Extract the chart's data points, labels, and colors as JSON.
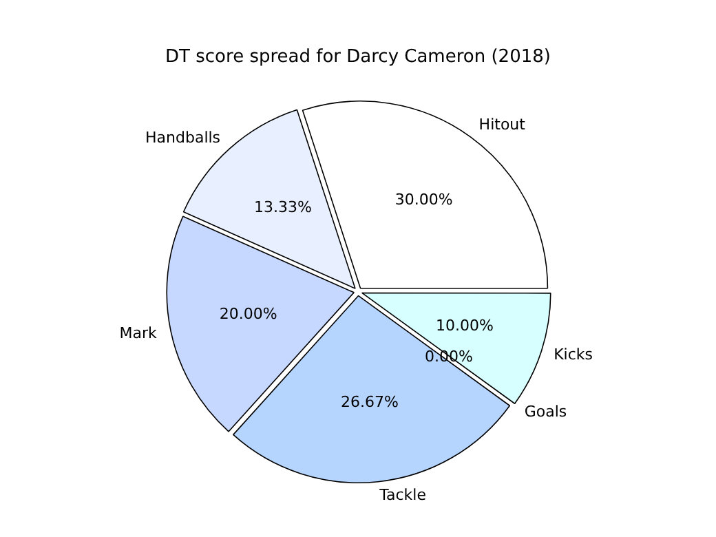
{
  "chart_data": {
    "type": "pie",
    "title": "DT score spread for Darcy Cameron (2018)",
    "categories": [
      "Hitout",
      "Handballs",
      "Mark",
      "Tackle",
      "Goals",
      "Kicks"
    ],
    "values": [
      30,
      13.33,
      20,
      26.67,
      0,
      10
    ],
    "value_labels": [
      "30.00%",
      "13.33%",
      "20.00%",
      "26.67%",
      "0.00%",
      "10.00%"
    ],
    "colors": [
      "#ffffff",
      "#e8f0ff",
      "#c6d8ff",
      "#b5d5ff",
      "#c8f0ff",
      "#d8ffff"
    ],
    "legend": false
  }
}
